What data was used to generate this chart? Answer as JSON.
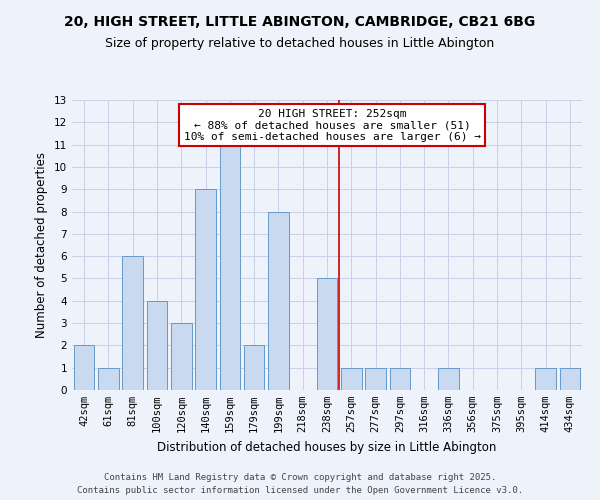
{
  "title1": "20, HIGH STREET, LITTLE ABINGTON, CAMBRIDGE, CB21 6BG",
  "title2": "Size of property relative to detached houses in Little Abington",
  "xlabel": "Distribution of detached houses by size in Little Abington",
  "ylabel": "Number of detached properties",
  "bin_labels": [
    "42sqm",
    "61sqm",
    "81sqm",
    "100sqm",
    "120sqm",
    "140sqm",
    "159sqm",
    "179sqm",
    "199sqm",
    "218sqm",
    "238sqm",
    "257sqm",
    "277sqm",
    "297sqm",
    "316sqm",
    "336sqm",
    "356sqm",
    "375sqm",
    "395sqm",
    "414sqm",
    "434sqm"
  ],
  "bar_heights": [
    2,
    1,
    6,
    4,
    3,
    9,
    11,
    2,
    8,
    0,
    5,
    1,
    1,
    1,
    0,
    1,
    0,
    0,
    0,
    1,
    1
  ],
  "bar_color": "#c8d9f0",
  "bar_edgecolor": "#6699cc",
  "vline_color": "#cc0000",
  "annotation_title": "20 HIGH STREET: 252sqm",
  "annotation_line1": "← 88% of detached houses are smaller (51)",
  "annotation_line2": "10% of semi-detached houses are larger (6) →",
  "ylim": [
    0,
    13
  ],
  "yticks": [
    0,
    1,
    2,
    3,
    4,
    5,
    6,
    7,
    8,
    9,
    10,
    11,
    12,
    13
  ],
  "footer1": "Contains HM Land Registry data © Crown copyright and database right 2025.",
  "footer2": "Contains public sector information licensed under the Open Government Licence v3.0.",
  "bg_color": "#eef2fa",
  "title1_fontsize": 10,
  "title2_fontsize": 9,
  "axis_label_fontsize": 8.5,
  "tick_fontsize": 7.5,
  "annotation_fontsize": 8,
  "footer_fontsize": 6.5
}
